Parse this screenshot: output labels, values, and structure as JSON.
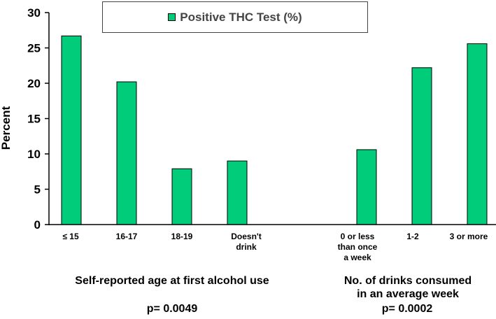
{
  "chart_data": {
    "type": "bar",
    "ylabel": "Percent",
    "ylim": [
      0,
      30
    ],
    "yticks": [
      "0",
      "5",
      "10",
      "15",
      "20",
      "25",
      "30"
    ],
    "grid": false,
    "legend_position": "top",
    "bar_color": "#00cc7a",
    "categories": [
      "≤ 15",
      "16-17",
      "18-19",
      "Doesn't drink",
      "0 or less than once a week",
      "1-2",
      "3 or more"
    ],
    "category_lines": [
      [
        "≤ 15"
      ],
      [
        "16-17"
      ],
      [
        "18-19"
      ],
      [
        "Doesn't",
        "drink"
      ],
      [
        "0 or less",
        "than once",
        "a week"
      ],
      [
        "1-2"
      ],
      [
        "3 or more"
      ]
    ],
    "series": [
      {
        "name": "Positive THC Test (%)",
        "values": [
          26.7,
          20.2,
          7.9,
          9.0,
          10.6,
          22.2,
          25.6
        ]
      }
    ],
    "groups": [
      {
        "label": "Self-reported age at first alcohol use",
        "pvalue": "p= 0.0049"
      },
      {
        "label_lines": [
          "No. of drinks consumed",
          "in an average week"
        ],
        "pvalue": "p= 0.0002"
      }
    ]
  }
}
